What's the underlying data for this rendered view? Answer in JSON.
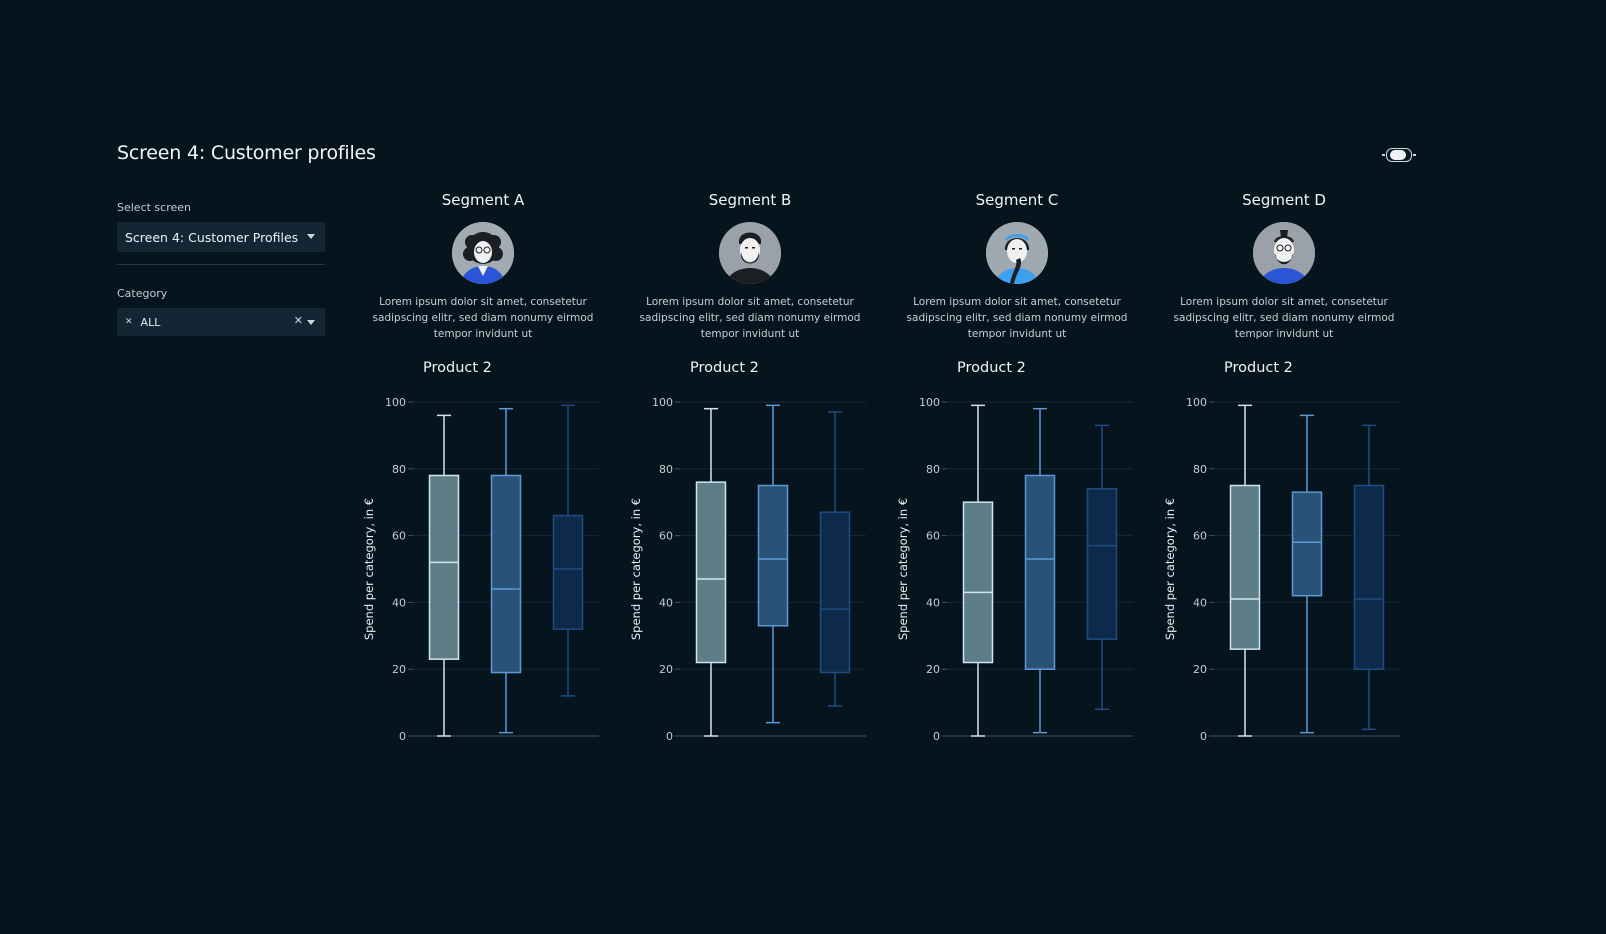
{
  "page": {
    "title": "Screen 4: Customer profiles"
  },
  "sidebar": {
    "screen_label": "Select screen",
    "screen_value": "Screen 4: Customer Profiles",
    "category_label": "Category",
    "category_chip": "ALL"
  },
  "colors": {
    "background": "#06141d",
    "box1_fill": "#5d7d87",
    "box1_line": "#cfe6f0",
    "box2_fill": "#2a5277",
    "box2_line": "#5b9ad6",
    "box3_fill": "#0e2a4a",
    "box3_line": "#1e4c86"
  },
  "segments": [
    {
      "name": "Segment A",
      "avatar": "avatar-woman-curly-hair-glasses-icon",
      "description": "Lorem ipsum dolor sit amet, consetetur sadipscing elitr, sed diam nonumy eirmod tempor invidunt ut",
      "product": "Product 2"
    },
    {
      "name": "Segment B",
      "avatar": "avatar-man-beard-icon",
      "description": "Lorem ipsum dolor sit amet, consetetur sadipscing elitr, sed diam nonumy eirmod tempor invidunt ut",
      "product": "Product 2"
    },
    {
      "name": "Segment C",
      "avatar": "avatar-woman-headband-braid-icon",
      "description": "Lorem ipsum dolor sit amet, consetetur sadipscing elitr, sed diam nonumy eirmod tempor invidunt ut",
      "product": "Product 2"
    },
    {
      "name": "Segment D",
      "avatar": "avatar-man-glasses-beard-icon",
      "description": "Lorem ipsum dolor sit amet, consetetur sadipscing elitr, sed diam nonumy eirmod tempor invidunt ut",
      "product": "Product 2"
    }
  ],
  "chart_data": [
    {
      "type": "box",
      "ylabel": "Spend per category, in €",
      "ylim": [
        0,
        100
      ],
      "yticks": [
        0,
        20,
        40,
        60,
        80,
        100
      ],
      "grid": true,
      "boxes": [
        {
          "min": 0,
          "q1": 23,
          "median": 52,
          "q3": 78,
          "max": 96
        },
        {
          "min": 1,
          "q1": 19,
          "median": 44,
          "q3": 78,
          "max": 98
        },
        {
          "min": 12,
          "q1": 32,
          "median": 50,
          "q3": 66,
          "max": 99
        }
      ]
    },
    {
      "type": "box",
      "ylabel": "Spend per category, in €",
      "ylim": [
        0,
        100
      ],
      "yticks": [
        0,
        20,
        40,
        60,
        80,
        100
      ],
      "grid": true,
      "boxes": [
        {
          "min": 0,
          "q1": 22,
          "median": 47,
          "q3": 76,
          "max": 98
        },
        {
          "min": 4,
          "q1": 33,
          "median": 53,
          "q3": 75,
          "max": 99
        },
        {
          "min": 9,
          "q1": 19,
          "median": 38,
          "q3": 67,
          "max": 97
        }
      ]
    },
    {
      "type": "box",
      "ylabel": "Spend per category, in €",
      "ylim": [
        0,
        100
      ],
      "yticks": [
        0,
        20,
        40,
        60,
        80,
        100
      ],
      "grid": true,
      "boxes": [
        {
          "min": 0,
          "q1": 22,
          "median": 43,
          "q3": 70,
          "max": 99
        },
        {
          "min": 1,
          "q1": 20,
          "median": 53,
          "q3": 78,
          "max": 98
        },
        {
          "min": 8,
          "q1": 29,
          "median": 57,
          "q3": 74,
          "max": 93
        }
      ]
    },
    {
      "type": "box",
      "ylabel": "Spend per category, in €",
      "ylim": [
        0,
        100
      ],
      "yticks": [
        0,
        20,
        40,
        60,
        80,
        100
      ],
      "grid": true,
      "boxes": [
        {
          "min": 0,
          "q1": 26,
          "median": 41,
          "q3": 75,
          "max": 99
        },
        {
          "min": 1,
          "q1": 42,
          "median": 58,
          "q3": 73,
          "max": 96
        },
        {
          "min": 2,
          "q1": 20,
          "median": 41,
          "q3": 75,
          "max": 93
        }
      ]
    }
  ]
}
